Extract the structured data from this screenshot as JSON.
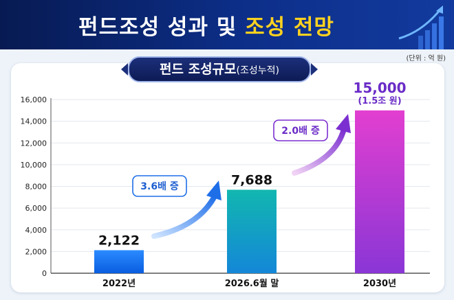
{
  "header": {
    "title_white": "펀드조성 성과 및",
    "title_yellow": "조성 전망"
  },
  "unit_label": "(단위 : 억 원)",
  "chart_title": {
    "main": "펀드 조성규모",
    "sub": "(조성누적)"
  },
  "colors": {
    "bar_2022": "#1e7ef7",
    "bar_2026": "#10b3a8",
    "bar_2030": "#d43fcf",
    "accent_purple": "#7b2fd0",
    "accent_blue": "#1e6ee8"
  },
  "chart_data": {
    "type": "bar",
    "categories": [
      "2022년",
      "2026.6월 말",
      "2030년"
    ],
    "values": [
      2122,
      7688,
      15000
    ],
    "value_labels": [
      "2,122",
      "7,688",
      "15,000"
    ],
    "value_sublabels": [
      "",
      "",
      "(1.5조 원)"
    ],
    "ylim": [
      0,
      16000
    ],
    "yticks": [
      0,
      2000,
      4000,
      6000,
      8000,
      10000,
      12000,
      14000,
      16000
    ],
    "ytick_labels": [
      "0",
      "2,000",
      "4,000",
      "6,000",
      "8,000",
      "10,000",
      "12,000",
      "14,000",
      "16,000"
    ],
    "annotations": [
      {
        "text": "3.6배 증",
        "from": "2022년",
        "to": "2026.6월 말"
      },
      {
        "text": "2.0배 증",
        "from": "2026.6월 말",
        "to": "2030년"
      }
    ],
    "grid": true
  }
}
